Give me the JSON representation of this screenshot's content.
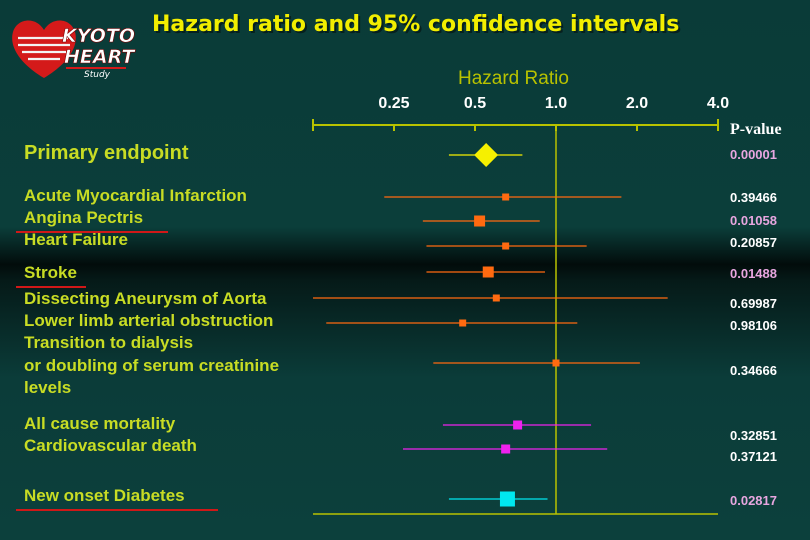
{
  "logo": {
    "line1": "KYOTO",
    "line2": "HEART",
    "line3": "Study"
  },
  "chart_data": {
    "type": "forest",
    "title": "Hazard ratio and 95% confidence intervals",
    "xlabel": "Hazard Ratio",
    "xscale": "log2",
    "xlim": [
      0.125,
      4.0
    ],
    "ticks": [
      {
        "value": 0.25,
        "label": "0.25"
      },
      {
        "value": 0.5,
        "label": "0.5"
      },
      {
        "value": 1.0,
        "label": "1.0"
      },
      {
        "value": 2.0,
        "label": "2.0"
      },
      {
        "value": 4.0,
        "label": "4.0"
      }
    ],
    "reference_line": 1.0,
    "pvalue_header": "P-value",
    "colors": {
      "primary": "#f6f000",
      "secondary": "#ff6a10",
      "mortality": "#ee22ee",
      "diabetes": "#00e8f0",
      "axis": "#b8c200"
    },
    "rows": [
      {
        "label": "Primary endpoint",
        "hr": 0.55,
        "low": 0.4,
        "high": 0.75,
        "p": "0.00001",
        "significant": true,
        "group": "primary",
        "marker": "diamond",
        "underline": false
      },
      {
        "label": "Acute Myocardial Infarction",
        "hr": 0.65,
        "low": 0.23,
        "high": 1.75,
        "p": "0.39466",
        "significant": false,
        "group": "secondary",
        "marker": "square",
        "underline": false
      },
      {
        "label": "Angina Pectris",
        "hr": 0.52,
        "low": 0.32,
        "high": 0.87,
        "p": "0.01058",
        "significant": true,
        "group": "secondary",
        "marker": "square",
        "underline": true
      },
      {
        "label": "Heart Failure",
        "hr": 0.65,
        "low": 0.33,
        "high": 1.3,
        "p": "0.20857",
        "significant": false,
        "group": "secondary",
        "marker": "square",
        "underline": false
      },
      {
        "label": "Stroke",
        "hr": 0.56,
        "low": 0.33,
        "high": 0.91,
        "p": "0.01488",
        "significant": true,
        "group": "secondary",
        "marker": "square",
        "underline": true
      },
      {
        "label": "Dissecting Aneurysm of Aorta",
        "hr": 0.6,
        "low": 0.125,
        "high": 2.6,
        "p": "0.69987",
        "significant": false,
        "group": "secondary",
        "marker": "square",
        "underline": false
      },
      {
        "label": "Lower limb arterial obstruction",
        "hr": 0.45,
        "low": 0.14,
        "high": 1.2,
        "p": "0.98106",
        "significant": false,
        "group": "secondary",
        "marker": "square",
        "underline": false
      },
      {
        "label": "Transition to dialysis\nor doubling of serum creatinine\nlevels",
        "hr": 1.0,
        "low": 0.35,
        "high": 2.05,
        "p": "0.34666",
        "significant": false,
        "group": "secondary",
        "marker": "square",
        "underline": false
      },
      {
        "label": "All cause mortality",
        "hr": 0.72,
        "low": 0.38,
        "high": 1.35,
        "p": "0.32851",
        "significant": false,
        "group": "mortality",
        "marker": "square",
        "underline": false
      },
      {
        "label": "Cardiovascular death",
        "hr": 0.65,
        "low": 0.27,
        "high": 1.55,
        "p": "0.37121",
        "significant": false,
        "group": "mortality",
        "marker": "square",
        "underline": false
      },
      {
        "label": "New onset Diabetes",
        "hr": 0.66,
        "low": 0.4,
        "high": 0.93,
        "p": "0.02817",
        "significant": true,
        "group": "diabetes",
        "marker": "square",
        "underline": true
      }
    ]
  }
}
